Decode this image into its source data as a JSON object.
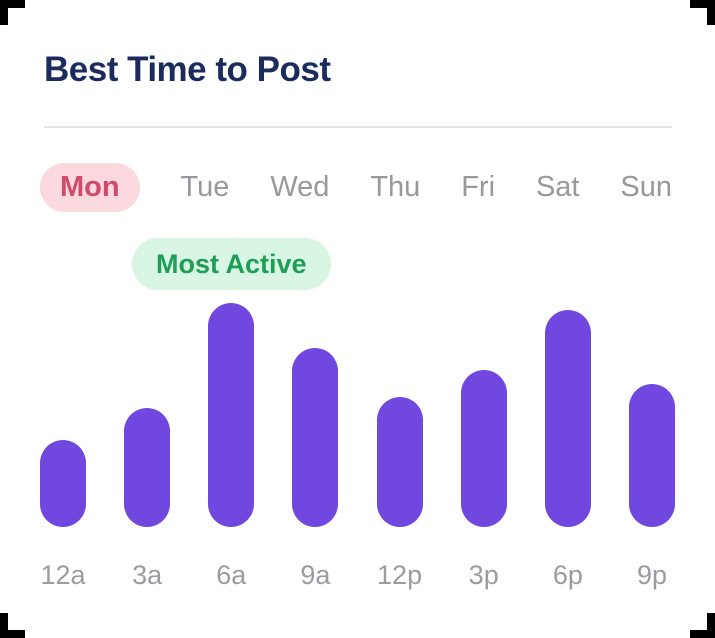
{
  "page": {
    "title": "Best Time to Post"
  },
  "day_tabs": {
    "items": [
      {
        "label": "Mon",
        "active": true
      },
      {
        "label": "Tue",
        "active": false
      },
      {
        "label": "Wed",
        "active": false
      },
      {
        "label": "Thu",
        "active": false
      },
      {
        "label": "Fri",
        "active": false
      },
      {
        "label": "Sat",
        "active": false
      },
      {
        "label": "Sun",
        "active": false
      }
    ]
  },
  "badge": {
    "label": "Most Active"
  },
  "colors": {
    "title": "#1b2b5e",
    "bar": "#7048e0",
    "tab_active_bg": "#fbd9de",
    "tab_active_text": "#d04a6b",
    "tab_inactive_text": "#98989d",
    "badge_bg": "#d8f6e3",
    "badge_text": "#1f9e58",
    "axis_label": "#9b9ba0",
    "divider": "#e6e6e8",
    "crop_mark": "#000000"
  },
  "chart_data": {
    "type": "bar",
    "title": "Best Time to Post",
    "categories": [
      "12a",
      "3a",
      "6a",
      "9a",
      "12p",
      "3p",
      "6p",
      "9p"
    ],
    "values": [
      39,
      53,
      100,
      80,
      58,
      70,
      97,
      64
    ],
    "selected_series": "Mon",
    "annotation": {
      "text": "Most Active",
      "target": "6a"
    },
    "ylim": [
      0,
      100
    ],
    "grid": false,
    "legend": false,
    "xlabel": "",
    "ylabel": ""
  }
}
